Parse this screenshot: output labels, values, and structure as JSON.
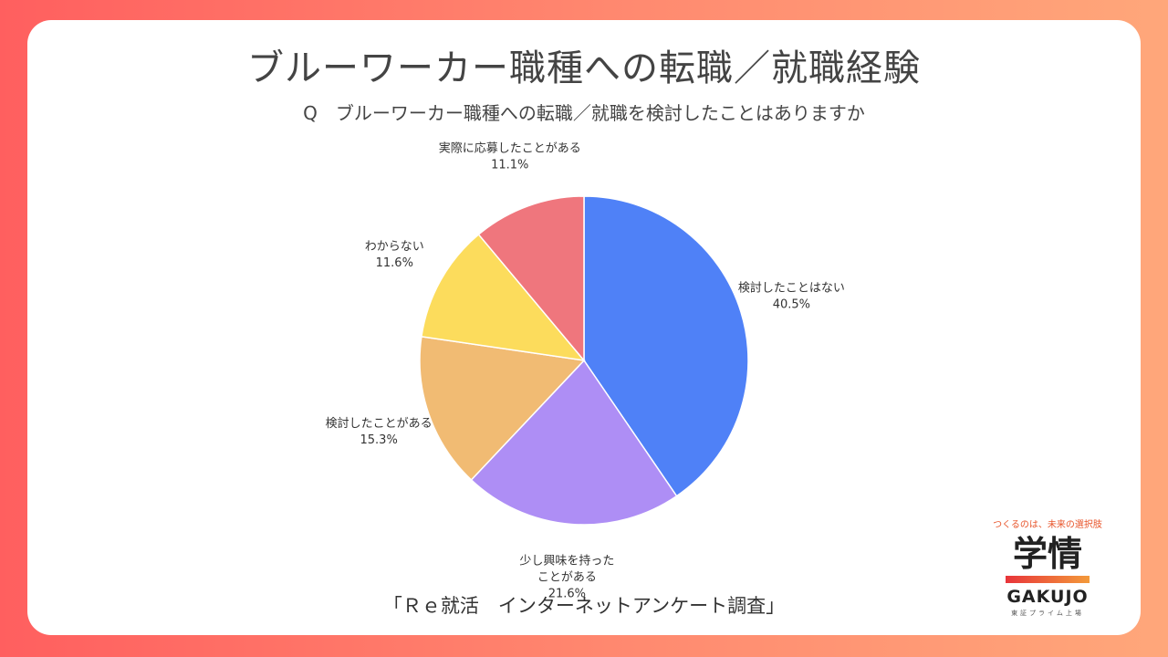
{
  "title": "ブルーワーカー職種への転職／就職経験",
  "subtitle": "Q　ブルーワーカー職種への転職／就職を検討したことはありますか",
  "source": "「Ｒｅ就活　インターネットアンケート調査」",
  "logo": {
    "tagline": "つくるのは、未来の選択肢",
    "mark": "学情",
    "wordmark": "GAKUJO",
    "sub": "東証プライム上場"
  },
  "chart_data": {
    "type": "pie",
    "slices": [
      {
        "label": "検討したことはない",
        "value": 40.5,
        "value_label": "40.5%",
        "color": "#4f81f7"
      },
      {
        "label": "少し興味を持った\nことがある",
        "value": 21.6,
        "value_label": "21.6%",
        "color": "#ae8ef5"
      },
      {
        "label": "検討したことがある",
        "value": 15.3,
        "value_label": "15.3%",
        "color": "#f1bb73"
      },
      {
        "label": "わからない",
        "value": 11.6,
        "value_label": "11.6%",
        "color": "#fcdc5c"
      },
      {
        "label": "実際に応募したことがある",
        "value": 11.1,
        "value_label": "11.1%",
        "color": "#ef767d"
      }
    ],
    "start": "12 o'clock",
    "direction": "clockwise"
  }
}
